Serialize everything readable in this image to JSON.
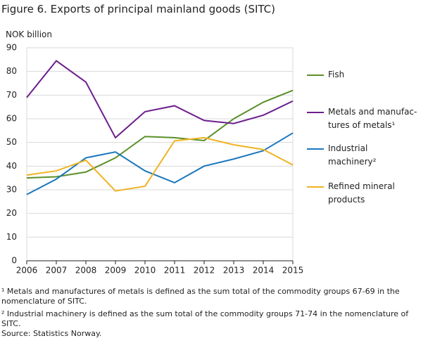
{
  "chart_data": {
    "type": "line",
    "title": "Figure 6. Exports of principal mainland goods (SITC)",
    "y_label": "NOK billion",
    "categories": [
      "2006",
      "2007",
      "2008",
      "2009",
      "2010",
      "2011",
      "2012",
      "2013",
      "2014",
      "2015"
    ],
    "series": [
      {
        "name": "Fish",
        "color": "#5a8f29",
        "values": [
          35,
          35.5,
          37.5,
          43.5,
          52.5,
          52,
          50.8,
          60,
          67,
          72
        ]
      },
      {
        "name": "Metals and manufac-\ntures of metals¹",
        "color": "#6c1e8c",
        "values": [
          69,
          84.5,
          75.5,
          52,
          63,
          65.5,
          59.3,
          58,
          61.5,
          67.5
        ]
      },
      {
        "name": "Industrial\nmachinery²",
        "color": "#1a77bd",
        "values": [
          28,
          34.5,
          43.5,
          46,
          38,
          33,
          40,
          43,
          46.5,
          54
        ]
      },
      {
        "name": "Refined mineral\nproducts",
        "color": "#f0b323",
        "values": [
          36.2,
          38,
          42.5,
          29.5,
          31.5,
          50.7,
          52,
          49,
          47,
          40.5
        ]
      }
    ],
    "ylim": [
      0,
      90
    ],
    "yticks": [
      0,
      10,
      20,
      30,
      40,
      50,
      60,
      70,
      80,
      90
    ],
    "grid": true,
    "notes": [
      "¹ Metals and manufactures of metals is defined as the sum total of the commodity groups 67-69 in the nomenclature of SITC.",
      "² Industrial machinery is defined as the sum total of the commodity groups 71-74 in the nomenclature of SITC.",
      "Source: Statistics Norway."
    ]
  }
}
